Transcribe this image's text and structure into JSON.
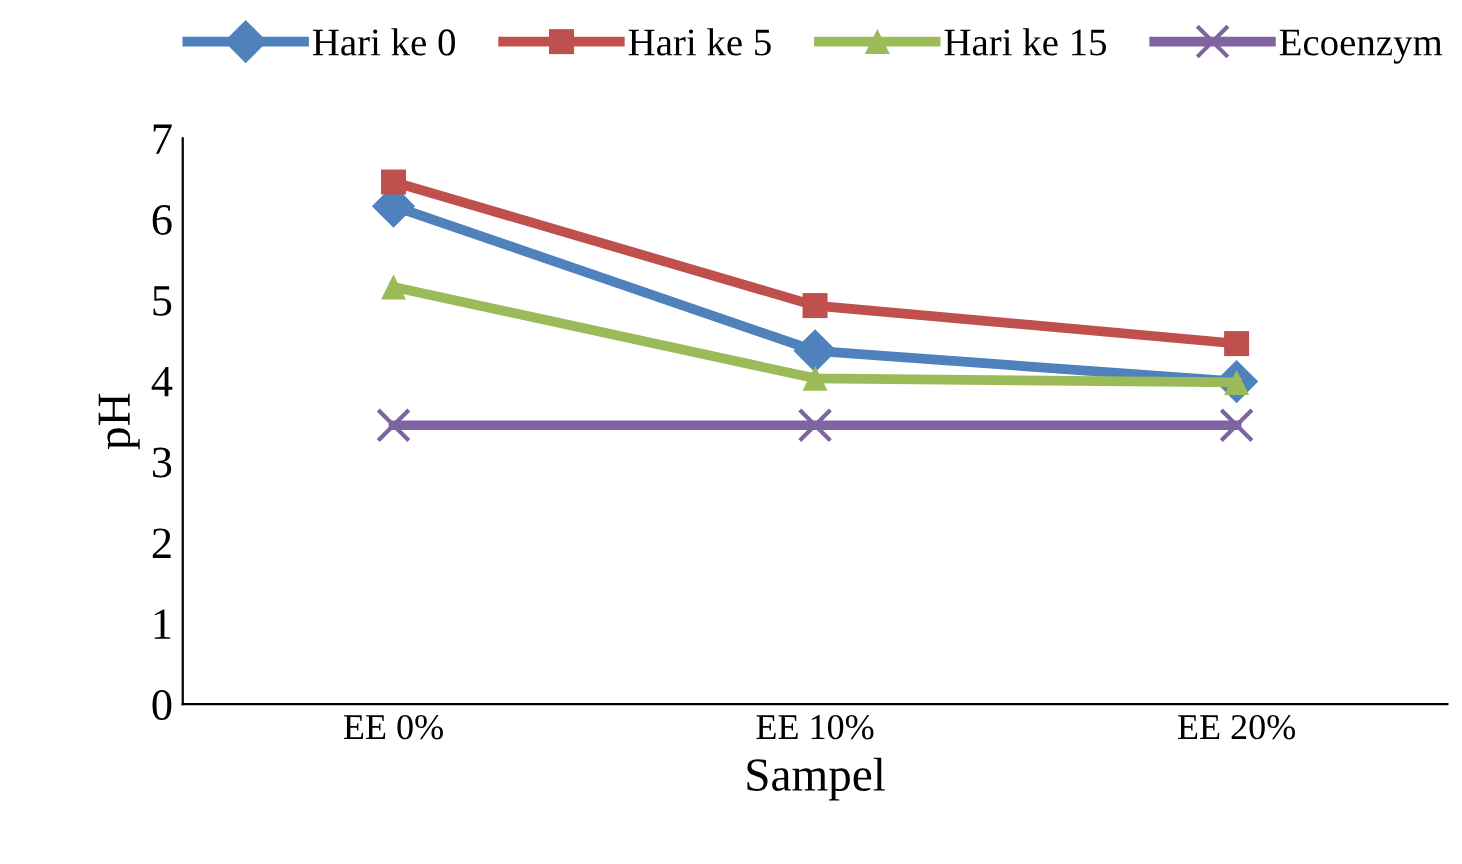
{
  "chart_data": {
    "type": "line",
    "xlabel": "Sampel",
    "ylabel": "pH",
    "categories": [
      "EE 0%",
      "EE 10%",
      "EE 20%"
    ],
    "series": [
      {
        "name": "Hari ke 0",
        "color": "#4f81bd",
        "marker": "diamond",
        "values": [
          6.16,
          4.37,
          3.99
        ]
      },
      {
        "name": "Hari ke 5",
        "color": "#c0504d",
        "marker": "square",
        "values": [
          6.46,
          4.93,
          4.46
        ]
      },
      {
        "name": "Hari ke 15",
        "color": "#9bbb59",
        "marker": "triangle",
        "values": [
          5.16,
          4.03,
          3.98
        ]
      },
      {
        "name": "Ecoenzym",
        "color": "#8064a2",
        "marker": "cross",
        "values": [
          3.45,
          3.45,
          3.45
        ]
      }
    ],
    "ylim": [
      0,
      7
    ],
    "yticks": [
      0,
      1,
      2,
      3,
      4,
      5,
      6,
      7
    ],
    "grid": false,
    "legend": "top"
  }
}
